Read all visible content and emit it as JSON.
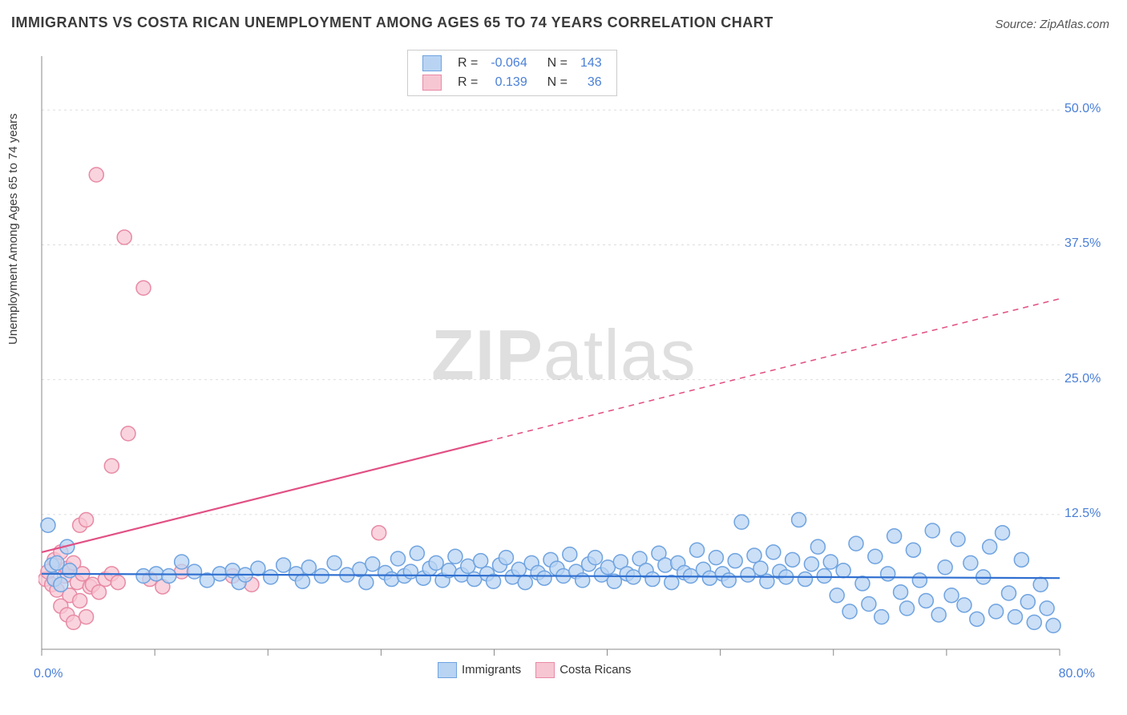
{
  "title": "IMMIGRANTS VS COSTA RICAN UNEMPLOYMENT AMONG AGES 65 TO 74 YEARS CORRELATION CHART",
  "source": "Source: ZipAtlas.com",
  "ylabel": "Unemployment Among Ages 65 to 74 years",
  "watermark": {
    "zip": "ZIP",
    "atlas": "atlas"
  },
  "chart": {
    "type": "scatter",
    "background_color": "#ffffff",
    "grid_color": "#dddddd",
    "axis_color": "#888888",
    "xlim": [
      0,
      80
    ],
    "ylim": [
      0,
      55
    ],
    "x_tick_positions": [
      0,
      8.89,
      17.78,
      26.67,
      35.56,
      44.44,
      53.33,
      62.22,
      71.11,
      80
    ],
    "y_gridlines": [
      12.5,
      25.0,
      37.5,
      50.0
    ],
    "y_tick_labels": [
      "12.5%",
      "25.0%",
      "37.5%",
      "50.0%"
    ],
    "x_start_label": "0.0%",
    "x_end_label": "80.0%",
    "marker_radius": 9,
    "marker_stroke_width": 1.5,
    "line_width": 2.2,
    "series": [
      {
        "name": "Immigrants",
        "color_fill": "#b9d4f3",
        "color_stroke": "#6fa3e0",
        "line_color": "#2f6fd0",
        "R": "-0.064",
        "N": "143",
        "trend": {
          "x1": 0,
          "y1": 7.0,
          "x2": 80,
          "y2": 6.6,
          "dash_from_x": 80
        },
        "points": [
          [
            0.5,
            11.5
          ],
          [
            0.8,
            7.8
          ],
          [
            1.0,
            6.5
          ],
          [
            1.2,
            8.0
          ],
          [
            1.5,
            6.0
          ],
          [
            2.0,
            9.5
          ],
          [
            2.2,
            7.3
          ],
          [
            8,
            6.8
          ],
          [
            9,
            7.0
          ],
          [
            10,
            6.8
          ],
          [
            11,
            8.1
          ],
          [
            12,
            7.2
          ],
          [
            13,
            6.4
          ],
          [
            14,
            7.0
          ],
          [
            15,
            7.3
          ],
          [
            15.5,
            6.2
          ],
          [
            16,
            6.9
          ],
          [
            17,
            7.5
          ],
          [
            18,
            6.7
          ],
          [
            19,
            7.8
          ],
          [
            20,
            7.0
          ],
          [
            20.5,
            6.3
          ],
          [
            21,
            7.6
          ],
          [
            22,
            6.8
          ],
          [
            23,
            8.0
          ],
          [
            24,
            6.9
          ],
          [
            25,
            7.4
          ],
          [
            25.5,
            6.2
          ],
          [
            26,
            7.9
          ],
          [
            27,
            7.1
          ],
          [
            27.5,
            6.5
          ],
          [
            28,
            8.4
          ],
          [
            28.5,
            6.8
          ],
          [
            29,
            7.2
          ],
          [
            29.5,
            8.9
          ],
          [
            30,
            6.6
          ],
          [
            30.5,
            7.5
          ],
          [
            31,
            8.0
          ],
          [
            31.5,
            6.4
          ],
          [
            32,
            7.3
          ],
          [
            32.5,
            8.6
          ],
          [
            33,
            6.9
          ],
          [
            33.5,
            7.7
          ],
          [
            34,
            6.5
          ],
          [
            34.5,
            8.2
          ],
          [
            35,
            7.0
          ],
          [
            35.5,
            6.3
          ],
          [
            36,
            7.8
          ],
          [
            36.5,
            8.5
          ],
          [
            37,
            6.7
          ],
          [
            37.5,
            7.4
          ],
          [
            38,
            6.2
          ],
          [
            38.5,
            8.0
          ],
          [
            39,
            7.1
          ],
          [
            39.5,
            6.6
          ],
          [
            40,
            8.3
          ],
          [
            40.5,
            7.5
          ],
          [
            41,
            6.8
          ],
          [
            41.5,
            8.8
          ],
          [
            42,
            7.2
          ],
          [
            42.5,
            6.4
          ],
          [
            43,
            7.9
          ],
          [
            43.5,
            8.5
          ],
          [
            44,
            6.9
          ],
          [
            44.5,
            7.6
          ],
          [
            45,
            6.3
          ],
          [
            45.5,
            8.1
          ],
          [
            46,
            7.0
          ],
          [
            46.5,
            6.7
          ],
          [
            47,
            8.4
          ],
          [
            47.5,
            7.3
          ],
          [
            48,
            6.5
          ],
          [
            48.5,
            8.9
          ],
          [
            49,
            7.8
          ],
          [
            49.5,
            6.2
          ],
          [
            50,
            8.0
          ],
          [
            50.5,
            7.1
          ],
          [
            51,
            6.8
          ],
          [
            51.5,
            9.2
          ],
          [
            52,
            7.4
          ],
          [
            52.5,
            6.6
          ],
          [
            53,
            8.5
          ],
          [
            53.5,
            7.0
          ],
          [
            54,
            6.4
          ],
          [
            54.5,
            8.2
          ],
          [
            55,
            11.8
          ],
          [
            55.5,
            6.9
          ],
          [
            56,
            8.7
          ],
          [
            56.5,
            7.5
          ],
          [
            57,
            6.3
          ],
          [
            57.5,
            9.0
          ],
          [
            58,
            7.2
          ],
          [
            58.5,
            6.7
          ],
          [
            59,
            8.3
          ],
          [
            59.5,
            12.0
          ],
          [
            60,
            6.5
          ],
          [
            60.5,
            7.9
          ],
          [
            61,
            9.5
          ],
          [
            61.5,
            6.8
          ],
          [
            62,
            8.1
          ],
          [
            62.5,
            5.0
          ],
          [
            63,
            7.3
          ],
          [
            63.5,
            3.5
          ],
          [
            64,
            9.8
          ],
          [
            64.5,
            6.1
          ],
          [
            65,
            4.2
          ],
          [
            65.5,
            8.6
          ],
          [
            66,
            3.0
          ],
          [
            66.5,
            7.0
          ],
          [
            67,
            10.5
          ],
          [
            67.5,
            5.3
          ],
          [
            68,
            3.8
          ],
          [
            68.5,
            9.2
          ],
          [
            69,
            6.4
          ],
          [
            69.5,
            4.5
          ],
          [
            70,
            11.0
          ],
          [
            70.5,
            3.2
          ],
          [
            71,
            7.6
          ],
          [
            71.5,
            5.0
          ],
          [
            72,
            10.2
          ],
          [
            72.5,
            4.1
          ],
          [
            73,
            8.0
          ],
          [
            73.5,
            2.8
          ],
          [
            74,
            6.7
          ],
          [
            74.5,
            9.5
          ],
          [
            75,
            3.5
          ],
          [
            75.5,
            10.8
          ],
          [
            76,
            5.2
          ],
          [
            76.5,
            3.0
          ],
          [
            77,
            8.3
          ],
          [
            77.5,
            4.4
          ],
          [
            78,
            2.5
          ],
          [
            78.5,
            6.0
          ],
          [
            79,
            3.8
          ],
          [
            79.5,
            2.2
          ]
        ]
      },
      {
        "name": "Costa Ricans",
        "color_fill": "#f7c6d3",
        "color_stroke": "#e88aa5",
        "line_color": "#e15084",
        "R": "0.139",
        "N": "36",
        "trend": {
          "x1": 0,
          "y1": 9.0,
          "x2": 80,
          "y2": 32.5,
          "dash_from_x": 35
        },
        "points": [
          [
            0.3,
            6.5
          ],
          [
            0.5,
            7.2
          ],
          [
            0.8,
            6.0
          ],
          [
            1.0,
            8.3
          ],
          [
            1.2,
            5.5
          ],
          [
            1.5,
            9.0
          ],
          [
            1.8,
            6.8
          ],
          [
            2.0,
            7.5
          ],
          [
            2.2,
            5.0
          ],
          [
            2.5,
            8.0
          ],
          [
            2.8,
            6.2
          ],
          [
            3.0,
            11.5
          ],
          [
            3.2,
            7.0
          ],
          [
            3.5,
            12.0
          ],
          [
            3.8,
            5.8
          ],
          [
            1.5,
            4.0
          ],
          [
            2.0,
            3.2
          ],
          [
            2.5,
            2.5
          ],
          [
            3.0,
            4.5
          ],
          [
            3.5,
            3.0
          ],
          [
            4.0,
            6.0
          ],
          [
            4.5,
            5.3
          ],
          [
            5.0,
            6.5
          ],
          [
            5.5,
            7.0
          ],
          [
            6.0,
            6.2
          ],
          [
            4.3,
            44.0
          ],
          [
            6.5,
            38.2
          ],
          [
            8.0,
            33.5
          ],
          [
            6.8,
            20.0
          ],
          [
            5.5,
            17.0
          ],
          [
            11.0,
            7.2
          ],
          [
            15.0,
            6.8
          ],
          [
            16.5,
            6.0
          ],
          [
            26.5,
            10.8
          ],
          [
            8.5,
            6.5
          ],
          [
            9.5,
            5.8
          ]
        ]
      }
    ],
    "bottom_legend": [
      {
        "label": "Immigrants",
        "fill": "#b9d4f3",
        "stroke": "#6fa3e0"
      },
      {
        "label": "Costa Ricans",
        "fill": "#f7c6d3",
        "stroke": "#e88aa5"
      }
    ]
  }
}
